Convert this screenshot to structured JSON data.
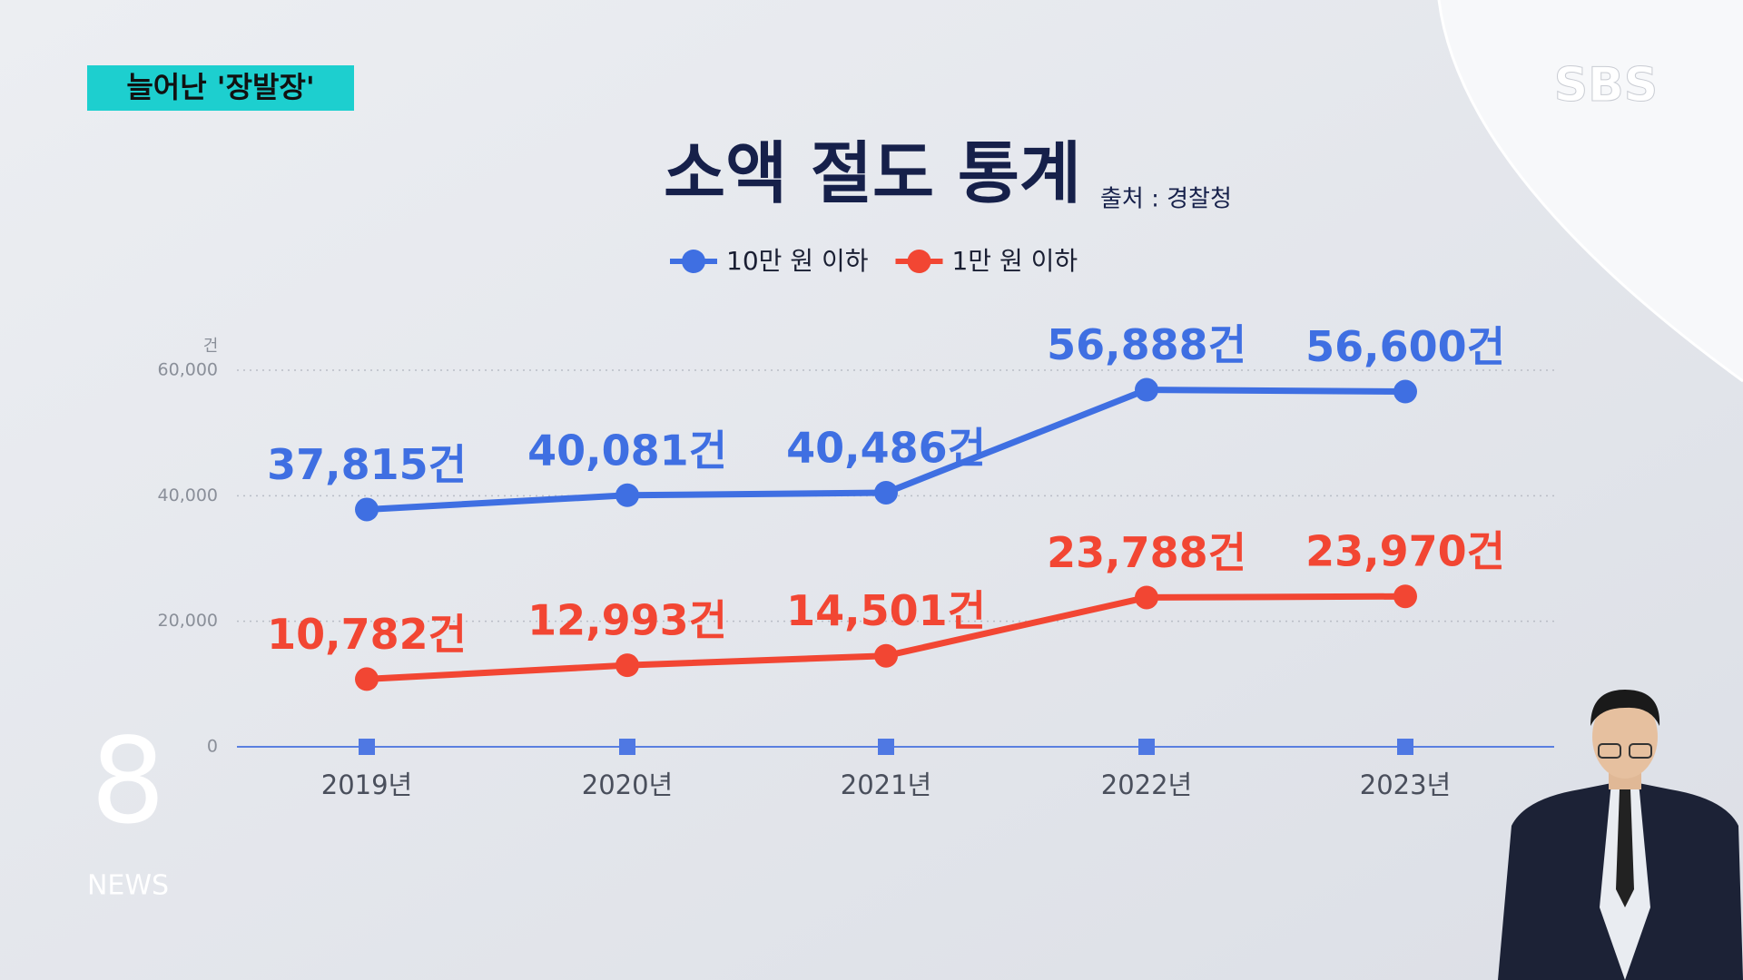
{
  "tag": "늘어난 '장발장'",
  "broadcaster": "SBS",
  "program": {
    "number": "8",
    "name": "NEWS"
  },
  "chart_data": {
    "type": "line",
    "title": "소액 절도 통계",
    "source": "출처 : 경찰청",
    "y_unit": "건",
    "categories": [
      "2019년",
      "2020년",
      "2021년",
      "2022년",
      "2023년"
    ],
    "series": [
      {
        "name": "10만 원 이하",
        "color": "#3f6fe2",
        "values": [
          37815,
          40081,
          40486,
          56888,
          56600
        ],
        "value_labels": [
          "37,815건",
          "40,081건",
          "40,486건",
          "56,888건",
          "56,600건"
        ]
      },
      {
        "name": "1만 원 이하",
        "color": "#f24633",
        "values": [
          10782,
          12993,
          14501,
          23788,
          23970
        ],
        "value_labels": [
          "10,782건",
          "12,993건",
          "14,501건",
          "23,788건",
          "23,970건"
        ]
      }
    ],
    "ylim": [
      0,
      60000
    ],
    "yticks": [
      0,
      {
        "value": 20000,
        "label": "20,000"
      },
      {
        "value": 40000,
        "label": "40,000"
      },
      {
        "value": 60000,
        "label": "60,000"
      }
    ],
    "grid": true,
    "legend": "top"
  }
}
